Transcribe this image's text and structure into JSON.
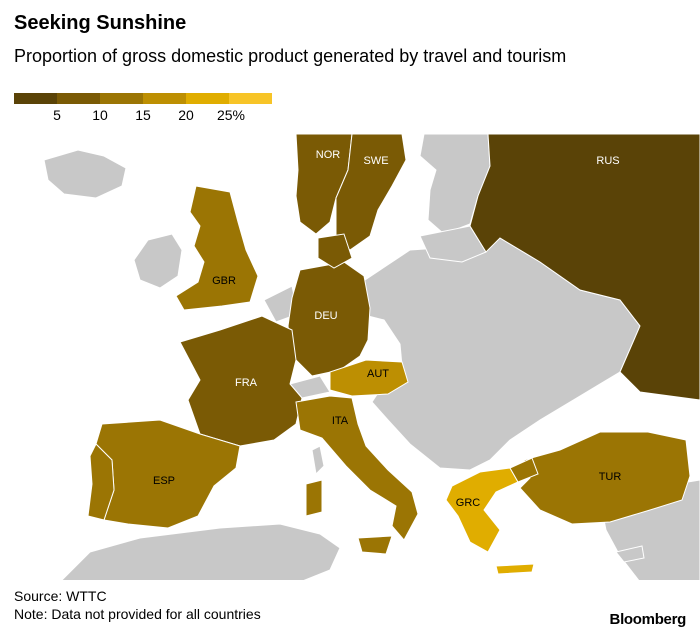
{
  "header": {
    "title": "Seeking Sunshine",
    "subtitle": "Proportion of gross domestic product generated by travel and tourism"
  },
  "legend": {
    "bins": [
      {
        "color": "#5a4307"
      },
      {
        "color": "#7a5a05"
      },
      {
        "color": "#9b7504"
      },
      {
        "color": "#bd8f02"
      },
      {
        "color": "#e0ad00"
      },
      {
        "color": "#f7c427"
      }
    ],
    "ticks": [
      "5",
      "10",
      "15",
      "20",
      "25%"
    ]
  },
  "colors": {
    "no_data": "#c8c8c8",
    "sea": "#ffffff",
    "border": "#ffffff"
  },
  "countries": [
    {
      "code": "RUS",
      "label": "RUS",
      "bin": 0
    },
    {
      "code": "NOR",
      "label": "NOR",
      "bin": 1
    },
    {
      "code": "SWE",
      "label": "SWE",
      "bin": 1
    },
    {
      "code": "GBR",
      "label": "GBR",
      "bin": 2
    },
    {
      "code": "DEU",
      "label": "DEU",
      "bin": 1
    },
    {
      "code": "FRA",
      "label": "FRA",
      "bin": 1
    },
    {
      "code": "AUT",
      "label": "AUT",
      "bin": 3
    },
    {
      "code": "ITA",
      "label": "ITA",
      "bin": 2
    },
    {
      "code": "ESP",
      "label": "ESP",
      "bin": 2
    },
    {
      "code": "GRC",
      "label": "GRC",
      "bin": 4
    },
    {
      "code": "TUR",
      "label": "TUR",
      "bin": 2
    }
  ],
  "footer": {
    "source": "Source: WTTC",
    "note": "Note: Data not provided for all countries",
    "brand": "Bloomberg"
  }
}
